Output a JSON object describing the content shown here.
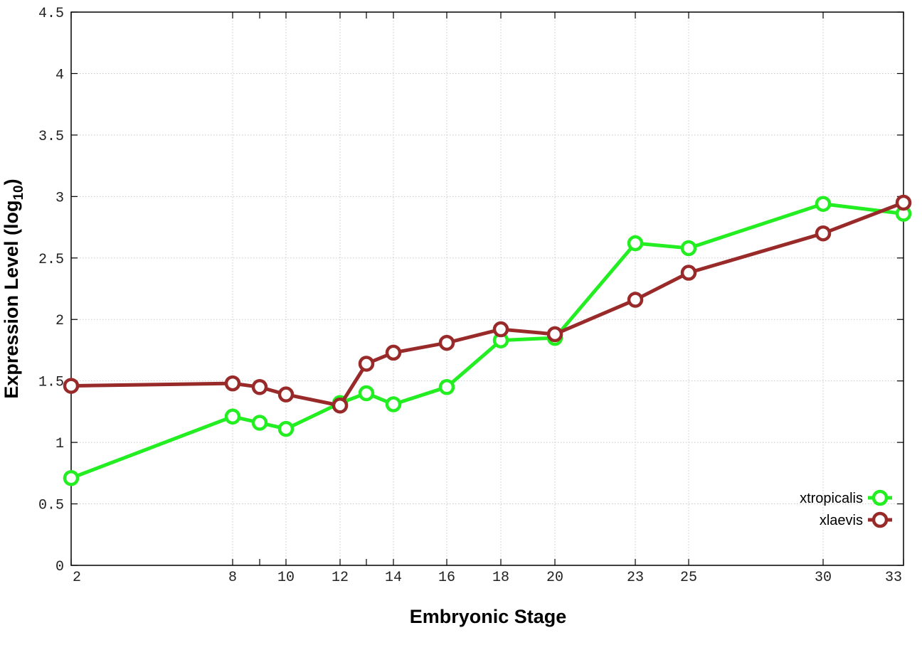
{
  "chart_data": {
    "type": "line",
    "title": "",
    "xlabel": "Embryonic Stage",
    "ylabel_main": "Expression Level (log",
    "ylabel_sub": "10",
    "ylabel_close": ")",
    "x_scale": "categorical-stage",
    "x_ticks": [
      "2",
      "8",
      "10",
      "12",
      "14",
      "16",
      "18",
      "20",
      "23",
      "25",
      "30",
      "33"
    ],
    "stages": [
      2,
      8,
      9,
      10,
      12,
      13,
      14,
      16,
      18,
      20,
      23,
      25,
      30,
      33
    ],
    "y_ticks": [
      "0",
      "0.5",
      "1",
      "1.5",
      "2",
      "2.5",
      "3",
      "3.5",
      "4",
      "4.5"
    ],
    "ylim": [
      0,
      4.5
    ],
    "grid": true,
    "legend_position": "bottom-right",
    "series": [
      {
        "name": "xtropicalis",
        "color": "#22ee22",
        "x": [
          2,
          8,
          9,
          10,
          12,
          13,
          14,
          16,
          18,
          20,
          23,
          25,
          30,
          33
        ],
        "y": [
          0.71,
          1.21,
          1.16,
          1.11,
          1.32,
          1.4,
          1.31,
          1.45,
          1.83,
          1.85,
          2.62,
          2.58,
          2.94,
          2.86
        ]
      },
      {
        "name": "xlaevis",
        "color": "#992a2a",
        "x": [
          2,
          8,
          9,
          10,
          12,
          13,
          14,
          16,
          18,
          20,
          23,
          25,
          30,
          33
        ],
        "y": [
          1.46,
          1.48,
          1.45,
          1.39,
          1.3,
          1.64,
          1.73,
          1.81,
          1.92,
          1.88,
          2.16,
          2.38,
          2.7,
          2.95
        ]
      }
    ]
  }
}
